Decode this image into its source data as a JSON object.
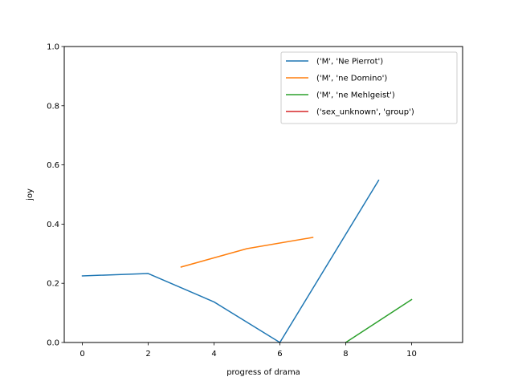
{
  "chart_data": {
    "type": "line",
    "title": "",
    "xlabel": "progress of drama",
    "ylabel": "joy",
    "xlim": [
      -0.55,
      11.55
    ],
    "ylim": [
      0.0,
      1.0
    ],
    "xticks": [
      0,
      2,
      4,
      6,
      8,
      10
    ],
    "yticks": [
      0.0,
      0.2,
      0.4,
      0.6,
      0.8,
      1.0
    ],
    "xtick_labels": [
      "0",
      "2",
      "4",
      "6",
      "8",
      "10"
    ],
    "ytick_labels": [
      "0.0",
      "0.2",
      "0.4",
      "0.6",
      "0.8",
      "1.0"
    ],
    "grid": false,
    "legend_position": "top-right",
    "series": [
      {
        "name": "('M', 'Ne Pierrot')",
        "color": "#1f77b4",
        "x": [
          0,
          2,
          4,
          6,
          9
        ],
        "y": [
          0.225,
          0.233,
          0.137,
          0.0,
          0.548
        ]
      },
      {
        "name": "('M', 'ne Domino')",
        "color": "#ff7f0e",
        "x": [
          3,
          5,
          7
        ],
        "y": [
          0.255,
          0.317,
          0.355
        ]
      },
      {
        "name": "('M', 'ne Mehlgeist')",
        "color": "#2ca02c",
        "x": [
          8,
          10
        ],
        "y": [
          0.0,
          0.145
        ]
      },
      {
        "name": "('sex_unknown', 'group')",
        "color": "#d62728",
        "x": [],
        "y": []
      }
    ]
  }
}
